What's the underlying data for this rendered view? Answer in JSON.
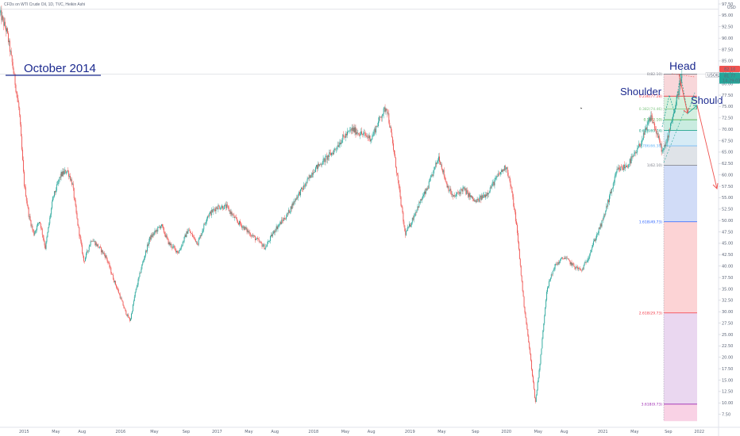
{
  "header": {
    "title": "CFDs on WTI Crude Oil, 1D, TVC, Heikin Ashi"
  },
  "currency": "USD",
  "price_tags": {
    "high": "82.10",
    "symbol": "USOIL",
    "last": "81.77",
    "time": "14:29:03"
  },
  "chart_data": {
    "type": "line",
    "title": "CFDs on WTI Crude Oil, 1D, TVC, Heikin Ashi",
    "xlabel": "",
    "ylabel": "",
    "ylim": [
      5,
      97.5
    ],
    "x_ticks": [
      "2015",
      "May",
      "Aug",
      "2016",
      "May",
      "Sep",
      "2017",
      "May",
      "Aug",
      "2018",
      "May",
      "Aug",
      "2019",
      "May",
      "Sep",
      "2020",
      "May",
      "Aug",
      "2021",
      "May",
      "Sep",
      "2022"
    ],
    "y_ticks": [
      "97.50",
      "95.00",
      "92.50",
      "90.00",
      "87.50",
      "85.00",
      "82.50",
      "80.00",
      "77.50",
      "75.00",
      "72.50",
      "70.00",
      "67.50",
      "65.00",
      "62.50",
      "60.00",
      "57.50",
      "55.00",
      "52.50",
      "50.00",
      "47.50",
      "45.00",
      "42.50",
      "40.00",
      "37.50",
      "35.00",
      "32.50",
      "30.00",
      "27.50",
      "25.00",
      "22.50",
      "20.00",
      "17.50",
      "15.00",
      "12.50",
      "10.00",
      "7.50"
    ],
    "series": [
      {
        "values": [
          [
            2014.75,
            95.5
          ],
          [
            2014.82,
            91.5
          ],
          [
            2014.88,
            84
          ],
          [
            2014.95,
            74
          ],
          [
            2015.0,
            58
          ],
          [
            2015.05,
            51
          ],
          [
            2015.1,
            47
          ],
          [
            2015.16,
            50
          ],
          [
            2015.22,
            44
          ],
          [
            2015.3,
            55
          ],
          [
            2015.38,
            60
          ],
          [
            2015.45,
            61
          ],
          [
            2015.5,
            58
          ],
          [
            2015.55,
            50
          ],
          [
            2015.62,
            41
          ],
          [
            2015.7,
            46
          ],
          [
            2015.78,
            44
          ],
          [
            2015.85,
            42
          ],
          [
            2015.93,
            37
          ],
          [
            2016.0,
            33
          ],
          [
            2016.05,
            30
          ],
          [
            2016.1,
            28
          ],
          [
            2016.15,
            34
          ],
          [
            2016.22,
            40
          ],
          [
            2016.3,
            46
          ],
          [
            2016.42,
            49
          ],
          [
            2016.5,
            45
          ],
          [
            2016.6,
            43
          ],
          [
            2016.7,
            48
          ],
          [
            2016.8,
            45
          ],
          [
            2016.9,
            51
          ],
          [
            2017.0,
            53
          ],
          [
            2017.1,
            53
          ],
          [
            2017.2,
            50
          ],
          [
            2017.3,
            48
          ],
          [
            2017.4,
            46
          ],
          [
            2017.5,
            44
          ],
          [
            2017.6,
            48
          ],
          [
            2017.72,
            51
          ],
          [
            2017.82,
            55
          ],
          [
            2017.92,
            58
          ],
          [
            2018.0,
            61
          ],
          [
            2018.1,
            63
          ],
          [
            2018.2,
            65
          ],
          [
            2018.3,
            68
          ],
          [
            2018.4,
            70
          ],
          [
            2018.5,
            69
          ],
          [
            2018.6,
            68
          ],
          [
            2018.7,
            73
          ],
          [
            2018.76,
            75
          ],
          [
            2018.82,
            67
          ],
          [
            2018.88,
            58
          ],
          [
            2018.95,
            47
          ],
          [
            2019.0,
            49
          ],
          [
            2019.08,
            53
          ],
          [
            2019.18,
            57
          ],
          [
            2019.3,
            64
          ],
          [
            2019.38,
            58
          ],
          [
            2019.45,
            55
          ],
          [
            2019.55,
            57
          ],
          [
            2019.68,
            54
          ],
          [
            2019.8,
            56
          ],
          [
            2019.92,
            60
          ],
          [
            2020.0,
            62
          ],
          [
            2020.05,
            57
          ],
          [
            2020.1,
            50
          ],
          [
            2020.18,
            32
          ],
          [
            2020.25,
            20
          ],
          [
            2020.3,
            10
          ],
          [
            2020.35,
            19
          ],
          [
            2020.42,
            35
          ],
          [
            2020.5,
            40
          ],
          [
            2020.6,
            42
          ],
          [
            2020.7,
            40
          ],
          [
            2020.78,
            39
          ],
          [
            2020.85,
            42
          ],
          [
            2020.92,
            46
          ],
          [
            2021.0,
            50
          ],
          [
            2021.08,
            56
          ],
          [
            2021.15,
            61
          ],
          [
            2021.25,
            62
          ],
          [
            2021.35,
            65
          ],
          [
            2021.45,
            70
          ],
          [
            2021.5,
            73
          ],
          [
            2021.56,
            69
          ],
          [
            2021.62,
            65
          ],
          [
            2021.66,
            67
          ],
          [
            2021.7,
            71
          ],
          [
            2021.75,
            75
          ],
          [
            2021.8,
            80
          ],
          [
            2021.82,
            81.8
          ]
        ]
      }
    ]
  },
  "annotations": {
    "october_2014": "October 2014",
    "head": "Head",
    "shoulder_left": "Shoulder",
    "shoulder_right": "Should"
  },
  "fib_levels": [
    {
      "label": "0(82.10)",
      "value": 82.1,
      "color": "#787b86",
      "fill": "#f8d7da"
    },
    {
      "label": "0.236(77.28)",
      "value": 77.28,
      "color": "#f23645",
      "fill": "#d7f0dc"
    },
    {
      "label": "0.382(74.46)",
      "value": 74.46,
      "color": "#81c784",
      "fill": "#d5efe0"
    },
    {
      "label": "0.5(72.10)",
      "value": 72.1,
      "color": "#4caf50",
      "fill": "#c9ece0"
    },
    {
      "label": "0.618(69.74)",
      "value": 69.74,
      "color": "#089981",
      "fill": "#d6ebf5"
    },
    {
      "label": "0.786(66.38)",
      "value": 66.38,
      "color": "#64b5f6",
      "fill": "#dfe3e8"
    },
    {
      "label": "1(62.10)",
      "value": 62.1,
      "color": "#787b86",
      "fill": "#d1dcf7"
    },
    {
      "label": "1.618(49.73)",
      "value": 49.73,
      "color": "#2962ff",
      "fill": "#fcd3d5"
    },
    {
      "label": "2.618(29.73)",
      "value": 29.73,
      "color": "#f23645",
      "fill": "#ead7f0"
    },
    {
      "label": "3.618(9.73)",
      "value": 9.73,
      "color": "#9c27b0",
      "fill": "#f9d2e5"
    }
  ],
  "colors": {
    "up": "#26a69a",
    "down": "#ef5350",
    "annotation": "#1c2a8f",
    "price_tag": "#26a69a",
    "high_tag": "#ef5350"
  }
}
